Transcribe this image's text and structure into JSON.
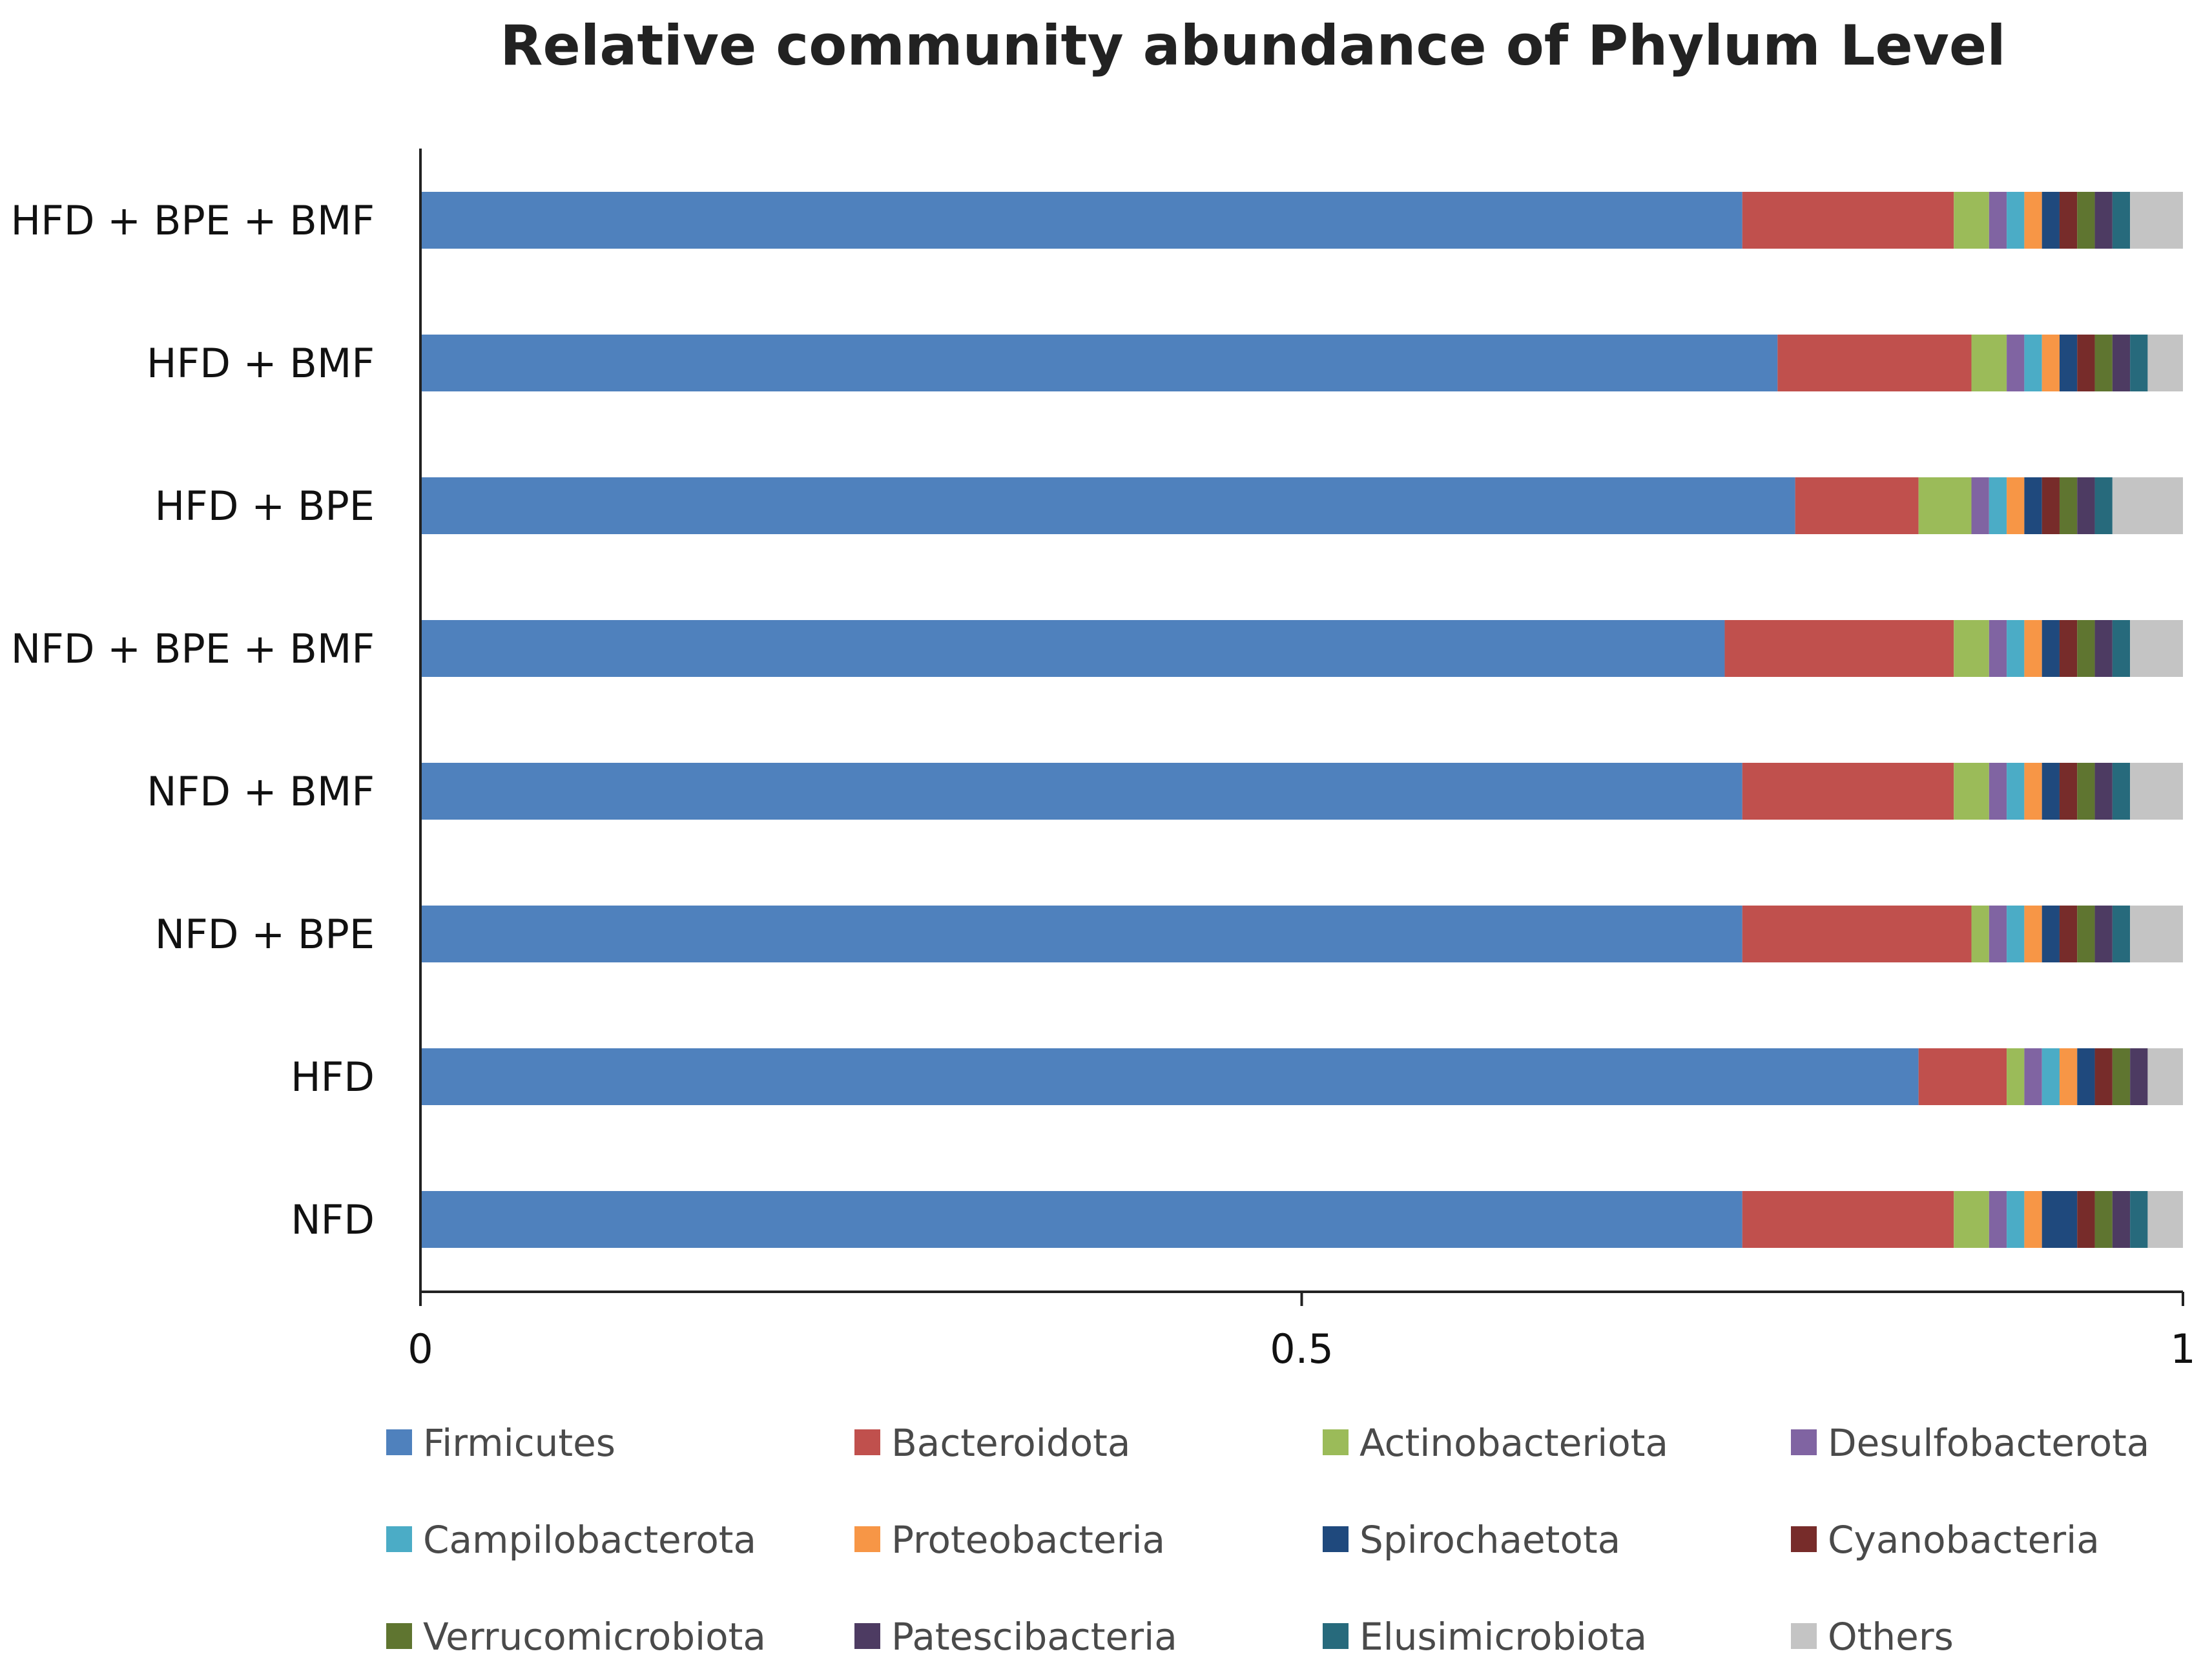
{
  "chart_data": {
    "type": "bar",
    "orientation": "horizontal",
    "stacked": true,
    "title": "Relative community abundance of Phylum Level",
    "xlabel": "",
    "ylabel": "",
    "xlim": [
      0,
      1
    ],
    "xticks": [
      {
        "value": 0,
        "label": "0"
      },
      {
        "value": 0.5,
        "label": "0.5"
      },
      {
        "value": 1,
        "label": "1"
      }
    ],
    "grid": false,
    "legend_position": "bottom",
    "categories": [
      "HFD + BPE + BMF",
      "HFD + BMF",
      "HFD + BPE",
      "NFD + BPE + BMF",
      "NFD + BMF",
      "NFD + BPE",
      "HFD",
      "NFD"
    ],
    "series": [
      {
        "name": "Firmicutes",
        "color": "#4f81bd",
        "values": [
          0.75,
          0.77,
          0.78,
          0.74,
          0.75,
          0.75,
          0.85,
          0.75
        ]
      },
      {
        "name": "Bacteroidota",
        "color": "#c0504d",
        "values": [
          0.12,
          0.11,
          0.07,
          0.13,
          0.12,
          0.13,
          0.05,
          0.12
        ]
      },
      {
        "name": "Actinobacteriota",
        "color": "#9bbb59",
        "values": [
          0.02,
          0.02,
          0.03,
          0.02,
          0.02,
          0.01,
          0.01,
          0.02
        ]
      },
      {
        "name": "Desulfobacterota",
        "color": "#8064a2",
        "values": [
          0.01,
          0.01,
          0.01,
          0.01,
          0.01,
          0.01,
          0.01,
          0.01
        ]
      },
      {
        "name": "Campilobacterota",
        "color": "#4bacc6",
        "values": [
          0.01,
          0.01,
          0.01,
          0.01,
          0.01,
          0.01,
          0.01,
          0.01
        ]
      },
      {
        "name": "Proteobacteria",
        "color": "#f79646",
        "values": [
          0.01,
          0.01,
          0.01,
          0.01,
          0.01,
          0.01,
          0.01,
          0.01
        ]
      },
      {
        "name": "Spirochaetota",
        "color": "#1f497d",
        "values": [
          0.01,
          0.01,
          0.01,
          0.01,
          0.01,
          0.01,
          0.01,
          0.02
        ]
      },
      {
        "name": "Cyanobacteria",
        "color": "#772c2a",
        "values": [
          0.01,
          0.01,
          0.01,
          0.01,
          0.01,
          0.01,
          0.01,
          0.01
        ]
      },
      {
        "name": "Verrucomicrobiota",
        "color": "#5f7530",
        "values": [
          0.01,
          0.01,
          0.01,
          0.01,
          0.01,
          0.01,
          0.01,
          0.01
        ]
      },
      {
        "name": "Patescibacteria",
        "color": "#4d3b62",
        "values": [
          0.01,
          0.01,
          0.01,
          0.01,
          0.01,
          0.01,
          0.01,
          0.01
        ]
      },
      {
        "name": "Elusimicrobiota",
        "color": "#276a7c",
        "values": [
          0.01,
          0.01,
          0.01,
          0.01,
          0.01,
          0.01,
          0.0,
          0.01
        ]
      },
      {
        "name": "Others",
        "color": "#c4c4c4",
        "values": [
          0.03,
          0.03,
          0.04,
          0.03,
          0.03,
          0.03,
          0.02,
          0.02
        ]
      }
    ]
  }
}
